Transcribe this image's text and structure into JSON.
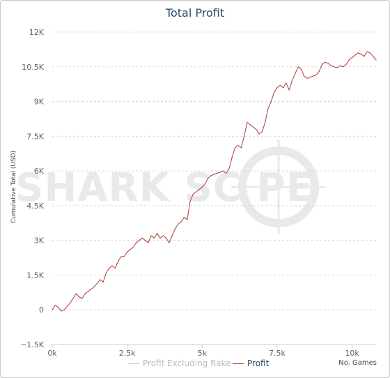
{
  "chart_data": {
    "type": "line",
    "title": "Total Profit",
    "ylabel": "Cumulative Total (USD)",
    "xlabel": "No. Games",
    "xlim": [
      0,
      10800
    ],
    "ylim": [
      -1500,
      12000
    ],
    "xticks": [
      {
        "v": 0,
        "label": "0k"
      },
      {
        "v": 2500,
        "label": "2.5k"
      },
      {
        "v": 5000,
        "label": "5k"
      },
      {
        "v": 7500,
        "label": "7.5k"
      },
      {
        "v": 10000,
        "label": "10k"
      }
    ],
    "yticks": [
      {
        "v": -1500,
        "label": "−1.5K"
      },
      {
        "v": 0,
        "label": "0"
      },
      {
        "v": 1500,
        "label": "1.5K"
      },
      {
        "v": 3000,
        "label": "3K"
      },
      {
        "v": 4500,
        "label": "4.5K"
      },
      {
        "v": 6000,
        "label": "6K"
      },
      {
        "v": 7500,
        "label": "7.5K"
      },
      {
        "v": 9000,
        "label": "9K"
      },
      {
        "v": 10500,
        "label": "10.5K"
      },
      {
        "v": 12000,
        "label": "12K"
      }
    ],
    "grid": true,
    "legend_position": "bottom-center",
    "series": [
      {
        "name": "Profit Excluding Rake",
        "color": "#cccccc",
        "visible": false,
        "x": [],
        "y": []
      },
      {
        "name": "Profit",
        "color": "#b03a3a",
        "visible": true,
        "x": [
          0,
          100,
          200,
          300,
          400,
          500,
          600,
          700,
          800,
          900,
          1000,
          1100,
          1200,
          1300,
          1400,
          1500,
          1600,
          1700,
          1800,
          1900,
          2000,
          2100,
          2200,
          2300,
          2400,
          2500,
          2600,
          2700,
          2800,
          2900,
          3000,
          3100,
          3200,
          3300,
          3400,
          3500,
          3600,
          3700,
          3800,
          3900,
          4000,
          4100,
          4200,
          4300,
          4400,
          4500,
          4600,
          4700,
          4800,
          4900,
          5000,
          5100,
          5200,
          5300,
          5400,
          5500,
          5600,
          5700,
          5800,
          5900,
          6000,
          6100,
          6200,
          6300,
          6400,
          6500,
          6600,
          6700,
          6800,
          6900,
          7000,
          7100,
          7200,
          7300,
          7400,
          7500,
          7600,
          7700,
          7800,
          7900,
          8000,
          8100,
          8200,
          8300,
          8400,
          8500,
          8600,
          8700,
          8800,
          8900,
          9000,
          9100,
          9200,
          9300,
          9400,
          9500,
          9600,
          9700,
          9800,
          9900,
          10000,
          10100,
          10200,
          10300,
          10400,
          10500,
          10600,
          10700,
          10800
        ],
        "y": [
          0,
          200,
          100,
          -50,
          0,
          150,
          300,
          500,
          700,
          550,
          500,
          700,
          800,
          900,
          1000,
          1150,
          1300,
          1200,
          1600,
          1800,
          1900,
          1800,
          2100,
          2300,
          2300,
          2500,
          2600,
          2700,
          2900,
          3000,
          3100,
          3000,
          2900,
          3200,
          3100,
          3300,
          3100,
          3200,
          3100,
          2900,
          3200,
          3500,
          3700,
          3800,
          4000,
          3900,
          4700,
          5000,
          5100,
          5200,
          5300,
          5450,
          5700,
          5800,
          5850,
          5900,
          5950,
          6000,
          5900,
          6100,
          6600,
          7000,
          7100,
          7000,
          7500,
          8100,
          8000,
          7900,
          7800,
          7600,
          7700,
          8100,
          8700,
          9000,
          9400,
          9600,
          9700,
          9600,
          9800,
          9500,
          9900,
          10200,
          10500,
          10400,
          10100,
          10000,
          10050,
          10100,
          10150,
          10300,
          10600,
          10700,
          10650,
          10550,
          10500,
          10450,
          10550,
          10500,
          10600,
          10800,
          10900,
          11000,
          11100,
          11050,
          10950,
          11150,
          11100,
          10950,
          10800
        ]
      }
    ]
  },
  "watermark": "SHARK SC  PE"
}
